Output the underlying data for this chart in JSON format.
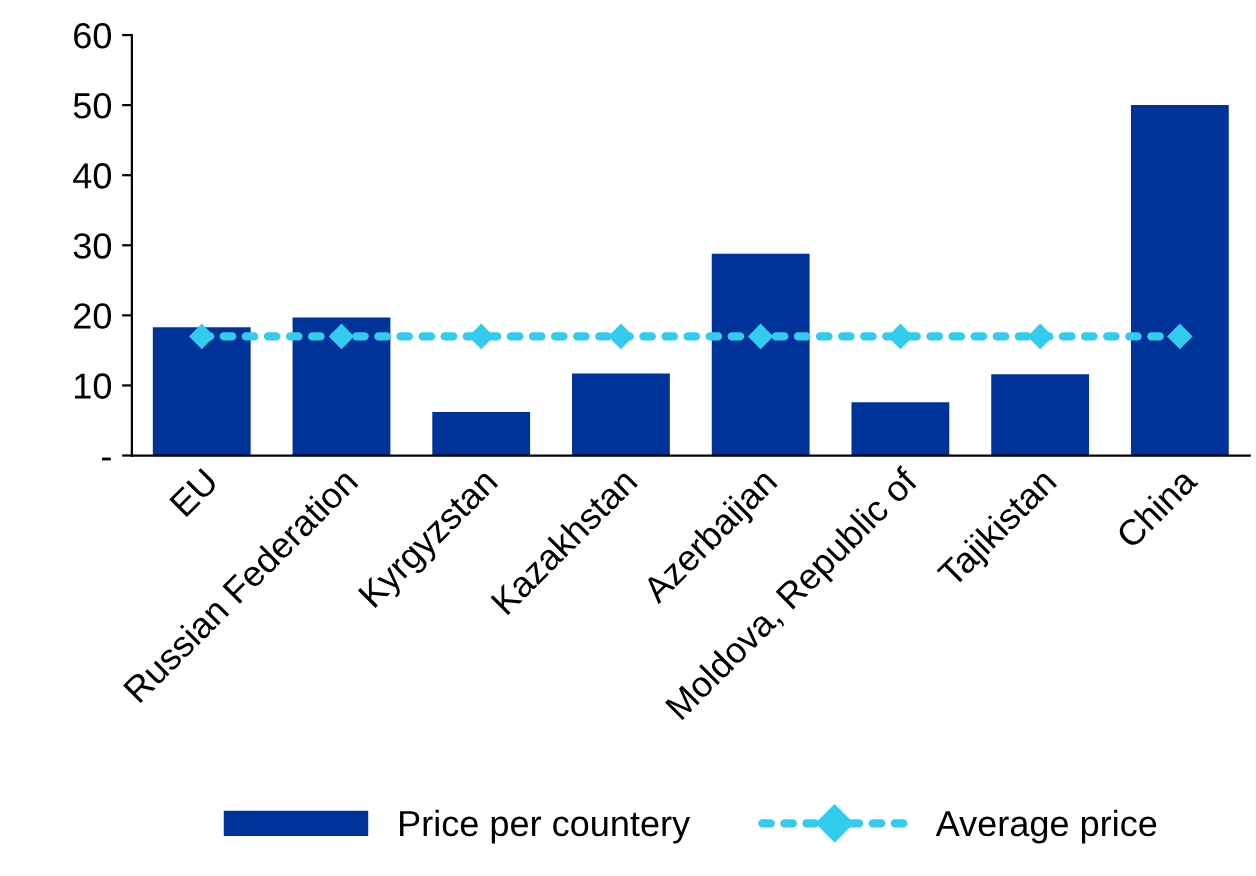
{
  "chart_data": {
    "type": "bar",
    "categories": [
      "EU",
      "Russian Federation",
      "Kyrgyzstan",
      "Kazakhstan",
      "Azerbaijan",
      "Moldova, Republic of",
      "Tajikistan",
      "China"
    ],
    "series": [
      {
        "name": "Price per countery",
        "color": "#003399",
        "values": [
          18.3,
          19.7,
          6.2,
          11.7,
          28.8,
          7.6,
          11.6,
          50
        ]
      },
      {
        "name": "Average price",
        "type": "line",
        "color": "#33ccee",
        "line_style": "dotted",
        "marker": "diamond",
        "values": [
          17,
          17,
          17,
          17,
          17,
          17,
          17,
          17
        ]
      }
    ],
    "ylim": [
      0,
      60
    ],
    "yticks": [
      {
        "value": 0,
        "label": "-"
      },
      10,
      20,
      30,
      40,
      50,
      60
    ],
    "grid": false,
    "legend": "bottom"
  }
}
